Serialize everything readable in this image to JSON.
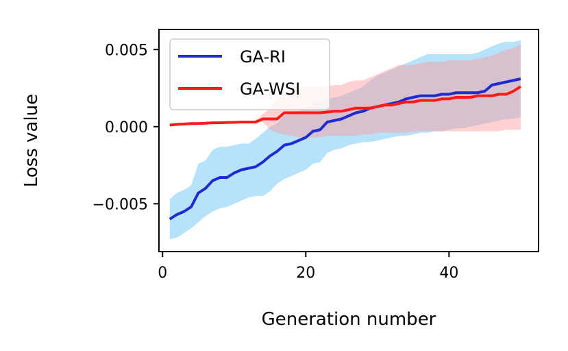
{
  "chart_data": {
    "type": "line",
    "title": "",
    "xlabel": "Generation number",
    "ylabel": "Loss value",
    "xlim": [
      -0.5,
      52.5
    ],
    "ylim": [
      -0.0081,
      0.0063
    ],
    "xticks": [
      0,
      20,
      40
    ],
    "xtick_labels": [
      "0",
      "20",
      "40"
    ],
    "yticks": [
      -0.005,
      0.0,
      0.005
    ],
    "ytick_labels": [
      "−0.005",
      "0.000",
      "0.005"
    ],
    "grid": false,
    "legend_position": "top-left",
    "x": [
      1,
      2,
      3,
      4,
      5,
      6,
      7,
      8,
      9,
      10,
      11,
      12,
      13,
      14,
      15,
      16,
      17,
      18,
      19,
      20,
      21,
      22,
      23,
      24,
      25,
      26,
      27,
      28,
      29,
      30,
      31,
      32,
      33,
      34,
      35,
      36,
      37,
      38,
      39,
      40,
      41,
      42,
      43,
      44,
      45,
      46,
      47,
      48,
      49,
      50
    ],
    "series": [
      {
        "name": "GA-RI",
        "color": "#1f2bd0",
        "band_color": "#87cefa",
        "mean": [
          -0.006,
          -0.0057,
          -0.0055,
          -0.0052,
          -0.0043,
          -0.004,
          -0.0035,
          -0.0033,
          -0.0033,
          -0.003,
          -0.0028,
          -0.0027,
          -0.0026,
          -0.0023,
          -0.0019,
          -0.0016,
          -0.0012,
          -0.0011,
          -0.0009,
          -0.0007,
          -0.0003,
          -0.0002,
          0.0003,
          0.0004,
          0.0005,
          0.0007,
          0.0009,
          0.001,
          0.0012,
          0.0013,
          0.0014,
          0.0015,
          0.0016,
          0.0018,
          0.0019,
          0.002,
          0.002,
          0.002,
          0.0021,
          0.0021,
          0.0022,
          0.0022,
          0.0022,
          0.0022,
          0.0023,
          0.0027,
          0.0028,
          0.0029,
          0.003,
          0.0031
        ],
        "lower": [
          -0.0073,
          -0.0072,
          -0.0069,
          -0.0066,
          -0.0062,
          -0.0058,
          -0.0055,
          -0.0053,
          -0.0052,
          -0.005,
          -0.0048,
          -0.0046,
          -0.0045,
          -0.0045,
          -0.0042,
          -0.0037,
          -0.0034,
          -0.0032,
          -0.003,
          -0.0028,
          -0.0024,
          -0.0023,
          -0.0017,
          -0.0015,
          -0.0014,
          -0.0012,
          -0.0011,
          -0.001,
          -0.001,
          -0.0009,
          -0.0008,
          -0.0007,
          -0.0006,
          -0.0006,
          -0.0005,
          -0.0004,
          -0.0004,
          -0.0003,
          -0.0003,
          -0.0002,
          -0.0001,
          -0.0001,
          0.0,
          0.0001,
          0.0002,
          0.0003,
          0.0004,
          0.0005,
          0.0005,
          0.0006
        ],
        "upper": [
          -0.0047,
          -0.0043,
          -0.0041,
          -0.0038,
          -0.0024,
          -0.0022,
          -0.0015,
          -0.0013,
          -0.0013,
          -0.0012,
          -0.0011,
          -0.0011,
          -0.0008,
          -0.0004,
          0.0,
          0.0002,
          0.0007,
          0.0009,
          0.001,
          0.0012,
          0.0015,
          0.0017,
          0.0018,
          0.0019,
          0.002,
          0.0022,
          0.0024,
          0.0026,
          0.003,
          0.0033,
          0.0035,
          0.0037,
          0.0039,
          0.0041,
          0.0043,
          0.0045,
          0.0047,
          0.0047,
          0.0047,
          0.0047,
          0.0047,
          0.0047,
          0.0047,
          0.0048,
          0.005,
          0.0052,
          0.0054,
          0.0055,
          0.0055,
          0.0056
        ]
      },
      {
        "name": "GA-WSI",
        "color": "#ff1a1a",
        "band_color": "#ff9999",
        "mean": [
          0.0001,
          0.00015,
          0.00017,
          0.0002,
          0.0002,
          0.00022,
          0.00025,
          0.00025,
          0.00027,
          0.00028,
          0.0003,
          0.0003,
          0.0003,
          0.0005,
          0.0005,
          0.0005,
          0.0009,
          0.0009,
          0.0009,
          0.0009,
          0.0009,
          0.0009,
          0.00095,
          0.001,
          0.001,
          0.0011,
          0.0012,
          0.0012,
          0.0012,
          0.0013,
          0.0014,
          0.0014,
          0.0015,
          0.0016,
          0.0016,
          0.0017,
          0.0017,
          0.0017,
          0.0018,
          0.0018,
          0.0019,
          0.0019,
          0.0019,
          0.002,
          0.002,
          0.002,
          0.0021,
          0.0021,
          0.0023,
          0.0026
        ],
        "lower": [
          0.0001,
          0.00015,
          0.00017,
          0.0002,
          0.0002,
          0.00022,
          0.00025,
          0.00025,
          0.00027,
          0.00028,
          0.0003,
          0.0003,
          0.0003,
          0.0003,
          -0.0002,
          -0.0004,
          -0.0005,
          -0.0006,
          -0.0007,
          -0.0007,
          -0.0007,
          -0.0007,
          -0.0006,
          -0.0006,
          -0.0006,
          -0.0006,
          -0.0006,
          -0.0005,
          -0.0005,
          -0.0004,
          -0.0004,
          -0.0004,
          -0.0004,
          -0.0004,
          -0.0003,
          -0.0003,
          -0.0003,
          -0.0003,
          -0.0003,
          -0.0003,
          -0.0003,
          -0.0003,
          -0.0003,
          -0.0003,
          -0.0003,
          -0.0003,
          -0.0003,
          -0.0002,
          -0.0002,
          -0.0002
        ],
        "upper": [
          0.0001,
          0.00015,
          0.00017,
          0.0002,
          0.0002,
          0.00022,
          0.00025,
          0.00025,
          0.00027,
          0.00028,
          0.0003,
          0.0003,
          0.0004,
          0.0008,
          0.0012,
          0.0018,
          0.002,
          0.0025,
          0.0026,
          0.0026,
          0.0026,
          0.0026,
          0.0026,
          0.0027,
          0.0027,
          0.0029,
          0.003,
          0.003,
          0.0032,
          0.0034,
          0.0036,
          0.0038,
          0.004,
          0.004,
          0.004,
          0.0041,
          0.0042,
          0.0042,
          0.0042,
          0.0043,
          0.0043,
          0.0043,
          0.0043,
          0.0044,
          0.0045,
          0.0046,
          0.0048,
          0.005,
          0.0051,
          0.0053
        ]
      }
    ]
  }
}
